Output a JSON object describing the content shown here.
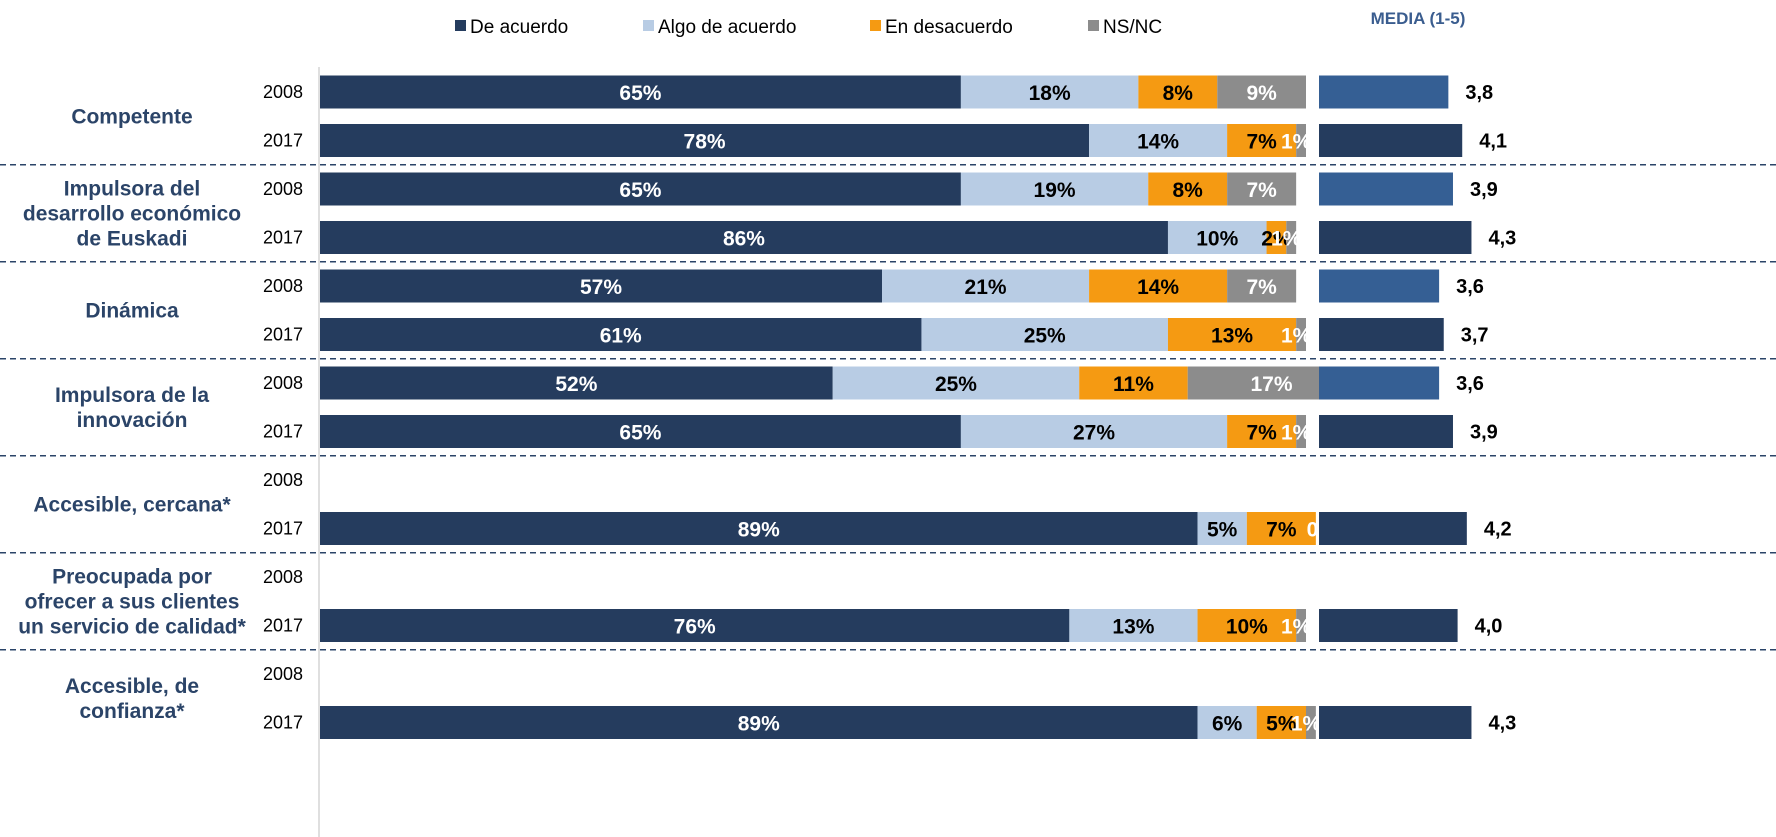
{
  "chart_data": {
    "type": "bar",
    "orientation": "horizontal",
    "stacked": true,
    "percent_stacked": true,
    "legend": [
      {
        "name": "De acuerdo",
        "color": "#253c5e"
      },
      {
        "name": "Algo de acuerdo",
        "color": "#b8cce4"
      },
      {
        "name": "En desacuerdo",
        "color": "#f59a12"
      },
      {
        "name": "NS/NC",
        "color": "#8c8c8c"
      }
    ],
    "legend_position": "top",
    "media_title": "MEDIA (1-5)",
    "media_colors": {
      "2008": "#355f94",
      "2017": "#253c5e"
    },
    "media_max": 5,
    "groups": [
      {
        "label": [
          "Competente"
        ],
        "rows": [
          {
            "year": "2008",
            "values": [
              65,
              18,
              8,
              9
            ],
            "labels": [
              "65%",
              "18%",
              "8%",
              "9%"
            ],
            "media": 3.8,
            "media_label": "3,8"
          },
          {
            "year": "2017",
            "values": [
              78,
              14,
              7,
              1
            ],
            "labels": [
              "78%",
              "14%",
              "7%",
              "1%"
            ],
            "media": 4.1,
            "media_label": "4,1"
          }
        ]
      },
      {
        "label": [
          "Impulsora del",
          "desarrollo económico",
          "de Euskadi"
        ],
        "rows": [
          {
            "year": "2008",
            "values": [
              65,
              19,
              8,
              7
            ],
            "labels": [
              "65%",
              "19%",
              "8%",
              "7%"
            ],
            "media": 3.9,
            "media_label": "3,9"
          },
          {
            "year": "2017",
            "values": [
              86,
              10,
              2,
              1
            ],
            "labels": [
              "86%",
              "10%",
              "2%",
              "1%"
            ],
            "media": 4.3,
            "media_label": "4,3"
          }
        ]
      },
      {
        "label": [
          "Dinámica"
        ],
        "rows": [
          {
            "year": "2008",
            "values": [
              57,
              21,
              14,
              7
            ],
            "labels": [
              "57%",
              "21%",
              "14%",
              "7%"
            ],
            "media": 3.6,
            "media_label": "3,6"
          },
          {
            "year": "2017",
            "values": [
              61,
              25,
              13,
              1
            ],
            "labels": [
              "61%",
              "25%",
              "13%",
              "1%"
            ],
            "media": 3.7,
            "media_label": "3,7"
          }
        ]
      },
      {
        "label": [
          "Impulsora de la",
          "innovación"
        ],
        "rows": [
          {
            "year": "2008",
            "values": [
              52,
              25,
              11,
              17
            ],
            "labels": [
              "52%",
              "25%",
              "11%",
              "17%"
            ],
            "media": 3.6,
            "media_label": "3,6"
          },
          {
            "year": "2017",
            "values": [
              65,
              27,
              7,
              1
            ],
            "labels": [
              "65%",
              "27%",
              "7%",
              "1%"
            ],
            "media": 3.9,
            "media_label": "3,9"
          }
        ]
      },
      {
        "label": [
          "Accesible, cercana*"
        ],
        "rows": [
          {
            "year": "2008",
            "values": null,
            "labels": null,
            "media": null,
            "media_label": null
          },
          {
            "year": "2017",
            "values": [
              89,
              5,
              7,
              0
            ],
            "labels": [
              "89%",
              "5%",
              "7%",
              "0%"
            ],
            "media": 4.2,
            "media_label": "4,2"
          }
        ]
      },
      {
        "label": [
          "Preocupada por",
          "ofrecer a sus clientes",
          "un servicio de calidad*"
        ],
        "rows": [
          {
            "year": "2008",
            "values": null,
            "labels": null,
            "media": null,
            "media_label": null
          },
          {
            "year": "2017",
            "values": [
              76,
              13,
              10,
              1
            ],
            "labels": [
              "76%",
              "13%",
              "10%",
              "1%"
            ],
            "media": 4.0,
            "media_label": "4,0"
          }
        ]
      },
      {
        "label": [
          "Accesible, de",
          "confianza*"
        ],
        "rows": [
          {
            "year": "2008",
            "values": null,
            "labels": null,
            "media": null,
            "media_label": null
          },
          {
            "year": "2017",
            "values": [
              89,
              6,
              5,
              1
            ],
            "labels": [
              "89%",
              "6%",
              "5%",
              "1%"
            ],
            "media": 4.3,
            "media_label": "4,3"
          }
        ]
      }
    ]
  }
}
